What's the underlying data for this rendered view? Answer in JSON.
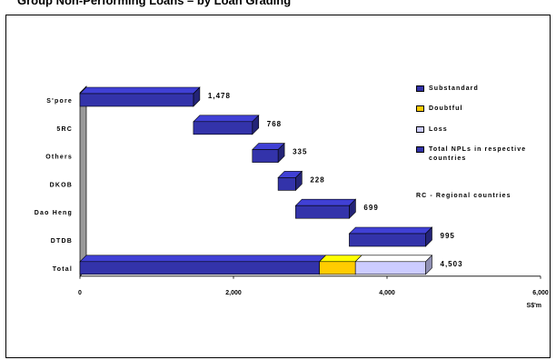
{
  "title": "Group Non-Performing Loans – by Loan Grading",
  "chart_data": {
    "type": "bar",
    "orientation": "horizontal",
    "stacked": true,
    "categories": [
      "S'pore",
      "5RC",
      "Others",
      "DKOB",
      "Dao Heng",
      "DTDB",
      "Total"
    ],
    "waterfall_start": [
      0,
      1478,
      2246,
      2581,
      2809,
      3508,
      0
    ],
    "series": [
      {
        "name": "Substandard",
        "values": [
          null,
          null,
          null,
          null,
          null,
          null,
          3120
        ],
        "color": "#3333aa"
      },
      {
        "name": "Doubtful",
        "values": [
          null,
          null,
          null,
          null,
          null,
          null,
          468
        ],
        "color": "#ffcc00"
      },
      {
        "name": "Loss",
        "values": [
          null,
          null,
          null,
          null,
          null,
          null,
          915
        ],
        "color": "#ccccff"
      },
      {
        "name": "Total NPLs in respective countries",
        "values": [
          1478,
          768,
          335,
          228,
          699,
          995,
          null
        ],
        "color": "#3333aa"
      }
    ],
    "value_labels": [
      "1,478",
      "768",
      "335",
      "228",
      "699",
      "995",
      "4,503"
    ],
    "xlim": [
      0,
      6000
    ],
    "xticks": [
      "0",
      "2,000",
      "4,000",
      "6,000"
    ],
    "xunit": "S$'m",
    "legend_position": "right",
    "legend_note": "RC - Regional countries",
    "grid": false,
    "bar_style": "3d",
    "side_wall_color": "#999999"
  }
}
